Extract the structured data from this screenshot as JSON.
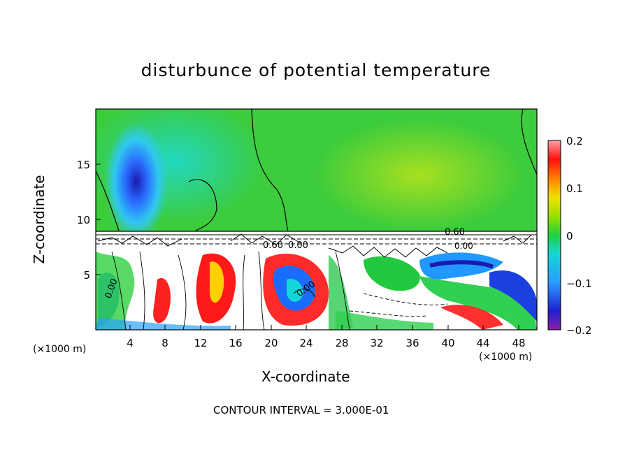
{
  "chart_data": {
    "type": "heatmap",
    "title": "disturbunce of potential temperature",
    "xlabel": "X-coordinate",
    "ylabel": "Z-coordinate",
    "x_unit": "(×1000 m)",
    "x_ticks": [
      4,
      8,
      12,
      16,
      20,
      24,
      28,
      32,
      36,
      40,
      44,
      48
    ],
    "y_ticks": [
      5,
      10,
      15
    ],
    "xlim": [
      0,
      50
    ],
    "ylim": [
      0,
      20
    ],
    "colorbar": {
      "ticks": [
        "0.2",
        "0.1",
        "0",
        "−0.1",
        "−0.2"
      ],
      "range": [
        -0.2,
        0.2
      ]
    },
    "contour_labels": [
      "0.60",
      "0.60",
      "0.00",
      "0.00",
      "0.00",
      "0.00"
    ],
    "footer": "CONTOUR INTERVAL = 3.000E-01"
  }
}
